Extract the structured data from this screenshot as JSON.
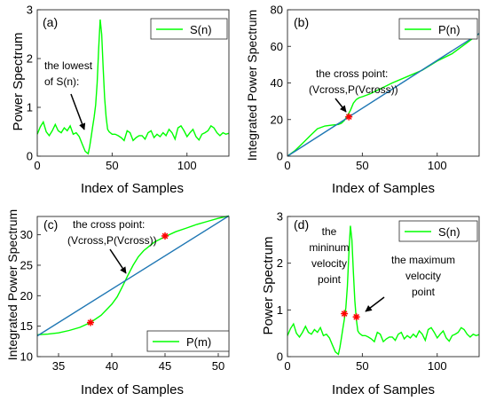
{
  "colors": {
    "green": "#00ff00",
    "blue": "#1f77b4",
    "marker": "#ff0000",
    "axis": "#262626"
  },
  "chart_data": [
    {
      "type": "line",
      "panel_label": "(a)",
      "xlabel": "Index of Samples",
      "ylabel": "Power Spectrum",
      "xlim": [
        0,
        128
      ],
      "ylim": [
        0,
        3
      ],
      "xticks": [
        0,
        50,
        100
      ],
      "yticks": [
        0,
        1,
        2,
        3
      ],
      "legend_position": "top-right",
      "series": [
        {
          "name": "S(n)",
          "color": "#00ff00",
          "x": [
            0,
            2,
            4,
            6,
            8,
            10,
            12,
            14,
            16,
            18,
            20,
            22,
            24,
            26,
            28,
            30,
            32,
            34,
            35,
            36,
            37,
            38,
            39,
            40,
            41,
            42,
            43,
            44,
            45,
            46,
            47,
            48,
            50,
            52,
            54,
            56,
            58,
            60,
            62,
            64,
            66,
            68,
            70,
            72,
            74,
            76,
            78,
            80,
            82,
            84,
            86,
            88,
            90,
            92,
            94,
            96,
            98,
            100,
            102,
            104,
            106,
            108,
            110,
            112,
            114,
            116,
            118,
            120,
            122,
            124,
            126,
            128
          ],
          "values": [
            0.45,
            0.6,
            0.7,
            0.5,
            0.42,
            0.52,
            0.65,
            0.52,
            0.48,
            0.58,
            0.52,
            0.62,
            0.45,
            0.48,
            0.4,
            0.25,
            0.1,
            0.05,
            0.2,
            0.4,
            0.6,
            0.8,
            1.05,
            1.5,
            2.2,
            2.8,
            2.5,
            1.8,
            1.2,
            0.8,
            0.55,
            0.5,
            0.45,
            0.45,
            0.42,
            0.38,
            0.32,
            0.52,
            0.48,
            0.32,
            0.38,
            0.42,
            0.42,
            0.35,
            0.48,
            0.52,
            0.38,
            0.45,
            0.4,
            0.48,
            0.42,
            0.55,
            0.48,
            0.35,
            0.58,
            0.62,
            0.52,
            0.4,
            0.48,
            0.55,
            0.4,
            0.33,
            0.45,
            0.48,
            0.52,
            0.62,
            0.58,
            0.48,
            0.42,
            0.48,
            0.45,
            0.47
          ]
        }
      ],
      "annotations": [
        {
          "text_lines": [
            "the lowest",
            "of S(n):"
          ],
          "x": 35,
          "y": 0.38
        }
      ]
    },
    {
      "type": "line",
      "panel_label": "(b)",
      "xlabel": "Index of Samples",
      "ylabel": "Integrated Power Spectrum",
      "xlim": [
        0,
        128
      ],
      "ylim": [
        0,
        80
      ],
      "xticks": [
        0,
        50,
        100
      ],
      "yticks": [
        0,
        20,
        40,
        60,
        80
      ],
      "legend_position": "top-right",
      "series": [
        {
          "name": "P(n)",
          "color": "#00ff00",
          "x": [
            0,
            5,
            10,
            15,
            20,
            25,
            30,
            34,
            36,
            38,
            40,
            42,
            44,
            46,
            48,
            50,
            55,
            60,
            70,
            80,
            90,
            100,
            110,
            120,
            128
          ],
          "values": [
            0,
            3,
            7,
            11,
            15,
            16.5,
            17,
            17.3,
            18,
            19.5,
            22,
            25,
            29,
            31,
            32,
            32.5,
            34,
            36,
            40,
            43.5,
            47,
            52,
            56,
            62,
            67
          ]
        },
        {
          "name": "",
          "color": "#1f77b4",
          "x": [
            0,
            128
          ],
          "values": [
            0,
            67
          ]
        }
      ],
      "markers": [
        {
          "x": 41,
          "y": 21.5,
          "color": "#ff0000"
        }
      ],
      "annotations": [
        {
          "text_lines": [
            "the cross point:",
            "(Vcross,P(Vcross))"
          ],
          "x": 41,
          "y": 21.5
        }
      ]
    },
    {
      "type": "line",
      "panel_label": "(c)",
      "xlabel": "Index of Samples",
      "ylabel": "Integrated Power Spectrum",
      "xlim": [
        33,
        51
      ],
      "ylim": [
        10,
        33
      ],
      "xticks": [
        35,
        40,
        45,
        50
      ],
      "yticks": [
        10,
        15,
        20,
        25,
        30
      ],
      "legend_position": "bottom-right",
      "series": [
        {
          "name": "P(m)",
          "color": "#00ff00",
          "x": [
            33,
            34,
            35,
            36,
            37,
            38,
            39,
            40,
            40.5,
            41,
            41.5,
            42,
            42.5,
            43,
            44,
            45,
            46,
            47,
            48,
            49,
            50,
            51
          ],
          "values": [
            13.6,
            13.7,
            13.9,
            14.3,
            14.8,
            15.6,
            16.8,
            18.6,
            19.8,
            21.5,
            23.3,
            25.0,
            26.4,
            27.4,
            28.8,
            29.7,
            30.5,
            31.1,
            31.7,
            32.2,
            32.7,
            33.1
          ]
        },
        {
          "name": "",
          "color": "#1f77b4",
          "x": [
            33,
            51
          ],
          "values": [
            13.4,
            33.1
          ]
        }
      ],
      "markers": [
        {
          "x": 38,
          "y": 15.6,
          "color": "#ff0000"
        },
        {
          "x": 45,
          "y": 29.8,
          "color": "#ff0000"
        }
      ],
      "annotations": [
        {
          "text_lines": [
            "the cross point:",
            "(Vcross,P(Vcross))"
          ],
          "x": 41.4,
          "y": 22.9
        }
      ]
    },
    {
      "type": "line",
      "panel_label": "(d)",
      "xlabel": "Index of Samples",
      "ylabel": "Power Spectrum",
      "xlim": [
        0,
        128
      ],
      "ylim": [
        0,
        3
      ],
      "xticks": [
        0,
        50,
        100
      ],
      "yticks": [
        0,
        1,
        2,
        3
      ],
      "legend_position": "top-right",
      "series": [
        {
          "name": "S(n)",
          "color": "#00ff00",
          "x": [
            0,
            2,
            4,
            6,
            8,
            10,
            12,
            14,
            16,
            18,
            20,
            22,
            24,
            26,
            28,
            30,
            32,
            34,
            35,
            36,
            37,
            38,
            39,
            40,
            41,
            42,
            43,
            44,
            45,
            46,
            47,
            48,
            50,
            52,
            54,
            56,
            58,
            60,
            62,
            64,
            66,
            68,
            70,
            72,
            74,
            76,
            78,
            80,
            82,
            84,
            86,
            88,
            90,
            92,
            94,
            96,
            98,
            100,
            102,
            104,
            106,
            108,
            110,
            112,
            114,
            116,
            118,
            120,
            122,
            124,
            126,
            128
          ],
          "values": [
            0.45,
            0.6,
            0.7,
            0.5,
            0.42,
            0.52,
            0.65,
            0.52,
            0.48,
            0.58,
            0.52,
            0.62,
            0.45,
            0.48,
            0.4,
            0.25,
            0.1,
            0.05,
            0.2,
            0.4,
            0.6,
            0.8,
            1.05,
            1.5,
            2.2,
            2.8,
            2.5,
            1.8,
            1.2,
            0.8,
            0.55,
            0.5,
            0.45,
            0.45,
            0.42,
            0.38,
            0.32,
            0.52,
            0.48,
            0.32,
            0.38,
            0.42,
            0.42,
            0.35,
            0.48,
            0.52,
            0.38,
            0.45,
            0.4,
            0.48,
            0.42,
            0.55,
            0.48,
            0.35,
            0.58,
            0.62,
            0.52,
            0.4,
            0.48,
            0.55,
            0.4,
            0.33,
            0.45,
            0.48,
            0.52,
            0.62,
            0.58,
            0.48,
            0.42,
            0.48,
            0.45,
            0.47
          ]
        }
      ],
      "markers": [
        {
          "x": 38,
          "y": 0.92,
          "color": "#ff0000"
        },
        {
          "x": 46,
          "y": 0.85,
          "color": "#ff0000"
        }
      ],
      "annotations": [
        {
          "text_lines": [
            "the",
            "mininum",
            "velocity",
            "point"
          ],
          "x": 38,
          "y": 0.92
        },
        {
          "text_lines": [
            "the maximum",
            "velocity",
            "point"
          ],
          "x": 46,
          "y": 0.85
        }
      ]
    }
  ]
}
